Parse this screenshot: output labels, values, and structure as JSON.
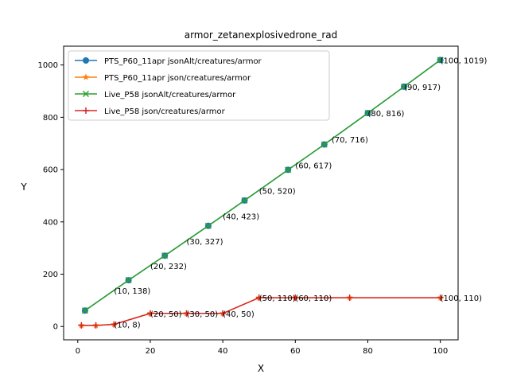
{
  "chart_data": {
    "type": "line",
    "title": "armor_zetanexplosivedrone_rad",
    "xlabel": "X",
    "ylabel": "Y",
    "xlim": [
      -3.9,
      104.9
    ],
    "ylim": [
      -51,
      1072
    ],
    "xticks": [
      0,
      20,
      40,
      60,
      80,
      100
    ],
    "yticks": [
      0,
      200,
      400,
      600,
      800,
      1000
    ],
    "grid": false,
    "legend_position": "upper left",
    "series": [
      {
        "name": "PTS_P60_11apr jsonAlt/creatures/armor",
        "color": "#1f77b4",
        "marker": "circle",
        "x": [
          2,
          14,
          24,
          36,
          46,
          58,
          68,
          80,
          90,
          100
        ],
        "y": [
          61,
          177,
          271,
          385,
          482,
          599,
          696,
          816,
          917,
          1019
        ]
      },
      {
        "name": "PTS_P60_11apr json/creatures/armor",
        "color": "#ff7f0e",
        "marker": "star",
        "x": [
          1,
          5,
          10,
          20,
          30,
          40,
          50,
          60,
          75,
          100
        ],
        "y": [
          4,
          4,
          8,
          50,
          50,
          50,
          110,
          110,
          110,
          110
        ]
      },
      {
        "name": "Live_P58 jsonAlt/creatures/armor",
        "color": "#2ca02c",
        "marker": "x",
        "x": [
          2,
          14,
          24,
          36,
          46,
          58,
          68,
          80,
          90,
          100
        ],
        "y": [
          61,
          177,
          271,
          385,
          482,
          599,
          696,
          816,
          917,
          1019
        ]
      },
      {
        "name": "Live_P58 json/creatures/armor",
        "color": "#d62728",
        "marker": "plus",
        "x": [
          1,
          5,
          10,
          20,
          30,
          40,
          50,
          60,
          75,
          100
        ],
        "y": [
          4,
          4,
          8,
          50,
          50,
          50,
          110,
          110,
          110,
          110
        ]
      }
    ],
    "annotations": [
      {
        "text": "(10, 138)",
        "x": 10,
        "y": 138
      },
      {
        "text": "(20, 232)",
        "x": 20,
        "y": 232
      },
      {
        "text": "(30, 327)",
        "x": 30,
        "y": 327
      },
      {
        "text": "(40, 423)",
        "x": 40,
        "y": 423
      },
      {
        "text": "(50, 520)",
        "x": 50,
        "y": 520
      },
      {
        "text": "(60, 617)",
        "x": 60,
        "y": 617
      },
      {
        "text": "(70, 716)",
        "x": 70,
        "y": 716
      },
      {
        "text": "(80, 816)",
        "x": 80,
        "y": 816
      },
      {
        "text": "(90, 917)",
        "x": 90,
        "y": 917
      },
      {
        "text": "(100, 1019)",
        "x": 100,
        "y": 1019
      },
      {
        "text": "(10, 8)",
        "x": 10,
        "y": 8
      },
      {
        "text": "(20, 50)",
        "x": 20,
        "y": 50
      },
      {
        "text": "(30, 50)",
        "x": 30,
        "y": 50
      },
      {
        "text": "(40, 50)",
        "x": 40,
        "y": 50
      },
      {
        "text": "(50, 110)",
        "x": 50,
        "y": 110
      },
      {
        "text": "(60, 110)",
        "x": 60,
        "y": 110
      },
      {
        "text": "(100, 110)",
        "x": 100,
        "y": 110
      }
    ]
  }
}
